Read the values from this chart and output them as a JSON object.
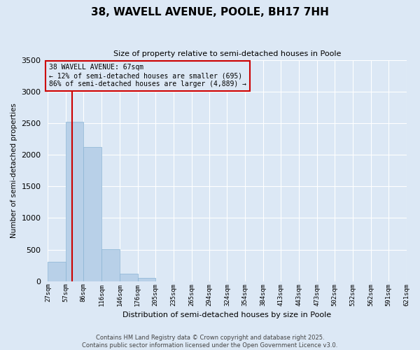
{
  "title": "38, WAVELL AVENUE, POOLE, BH17 7HH",
  "subtitle": "Size of property relative to semi-detached houses in Poole",
  "xlabel": "Distribution of semi-detached houses by size in Poole",
  "ylabel": "Number of semi-detached properties",
  "property_label": "38 WAVELL AVENUE: 67sqm",
  "pct_smaller": 12,
  "count_smaller": 695,
  "pct_larger": 86,
  "count_larger": "4,889",
  "bin_edges": [
    27,
    57,
    86,
    116,
    146,
    176,
    205,
    235,
    265,
    294,
    324,
    354,
    384,
    413,
    443,
    473,
    502,
    532,
    562,
    591,
    621
  ],
  "bin_labels": [
    "27sqm",
    "57sqm",
    "86sqm",
    "116sqm",
    "146sqm",
    "176sqm",
    "205sqm",
    "235sqm",
    "265sqm",
    "294sqm",
    "324sqm",
    "354sqm",
    "384sqm",
    "413sqm",
    "443sqm",
    "473sqm",
    "502sqm",
    "532sqm",
    "562sqm",
    "591sqm",
    "621sqm"
  ],
  "counts": [
    305,
    2530,
    2130,
    510,
    120,
    50,
    0,
    0,
    0,
    0,
    0,
    0,
    0,
    0,
    0,
    0,
    0,
    0,
    0,
    0
  ],
  "bar_color": "#b8d0e8",
  "bar_edge_color": "#8ab4d4",
  "vline_color": "#cc0000",
  "vline_x": 67,
  "ylim": [
    0,
    3500
  ],
  "yticks": [
    0,
    500,
    1000,
    1500,
    2000,
    2500,
    3000,
    3500
  ],
  "bg_color": "#dce8f5",
  "grid_color": "#ffffff",
  "footer_line1": "Contains HM Land Registry data © Crown copyright and database right 2025.",
  "footer_line2": "Contains public sector information licensed under the Open Government Licence v3.0."
}
